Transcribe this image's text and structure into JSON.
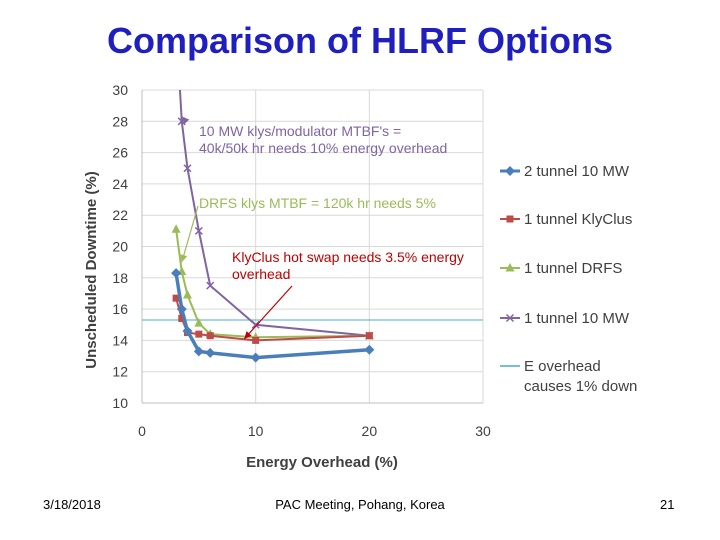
{
  "slide": {
    "title": "Comparison of HLRF Options",
    "footer_date": "3/18/2018",
    "footer_center": "PAC Meeting, Pohang, Korea",
    "footer_page": "21"
  },
  "chart_data": {
    "type": "line",
    "xlabel": "Energy Overhead (%)",
    "ylabel": "Unscheduled Downtime (%)",
    "xlim": [
      0,
      30
    ],
    "ylim": [
      10,
      30
    ],
    "xticks": [
      0,
      10,
      20,
      30
    ],
    "yticks": [
      10,
      12,
      14,
      16,
      18,
      20,
      22,
      24,
      26,
      28,
      30
    ],
    "grid": "horizontal",
    "legend_position": "right",
    "series": [
      {
        "name": "2 tunnel 10 MW",
        "color": "#4a7ebb",
        "marker": "diamond",
        "x": [
          3,
          3.5,
          4,
          5,
          6,
          10,
          20
        ],
        "y": [
          18.3,
          16.0,
          14.6,
          13.3,
          13.2,
          12.9,
          13.4
        ]
      },
      {
        "name": "1 tunnel KlyClus",
        "color": "#be4b48",
        "marker": "square",
        "x": [
          3,
          3.5,
          4,
          5,
          6,
          10,
          20
        ],
        "y": [
          16.7,
          15.4,
          14.5,
          14.4,
          14.3,
          14.0,
          14.3
        ]
      },
      {
        "name": "1 tunnel DRFS",
        "color": "#9bbb59",
        "marker": "triangle",
        "x": [
          3,
          3.5,
          4,
          5,
          6,
          10,
          20
        ],
        "y": [
          21.1,
          18.4,
          16.9,
          15.1,
          14.4,
          14.2,
          14.3
        ]
      },
      {
        "name": "1 tunnel 10 MW",
        "color": "#8064a2",
        "marker": "x",
        "x": [
          3.3,
          3.5,
          4,
          5,
          6,
          10,
          20
        ],
        "y": [
          30.5,
          28.0,
          25.0,
          21.0,
          17.5,
          15.0,
          14.3
        ]
      }
    ],
    "reference_line": {
      "name_lines": [
        "E overhead",
        "causes 1% down"
      ],
      "color": "#4aacc6",
      "y": 15.3
    },
    "annotations": [
      {
        "lines": [
          "10 MW klys/modulator MTBF's =",
          "40k/50k hr needs 10% energy overhead"
        ],
        "color": "#8064a2",
        "arrow_to": [
          3.5,
          28.3
        ]
      },
      {
        "lines": [
          "DRFS klys MTBF = 120k hr needs 5%"
        ],
        "color": "#9bbb59",
        "arrow_to": [
          3.5,
          19.0
        ]
      },
      {
        "lines": [
          "KlyClus  hot swap needs 3.5% energy",
          "overhead"
        ],
        "color": "#c00000",
        "arrow_to": [
          9.0,
          14.1
        ]
      }
    ]
  }
}
